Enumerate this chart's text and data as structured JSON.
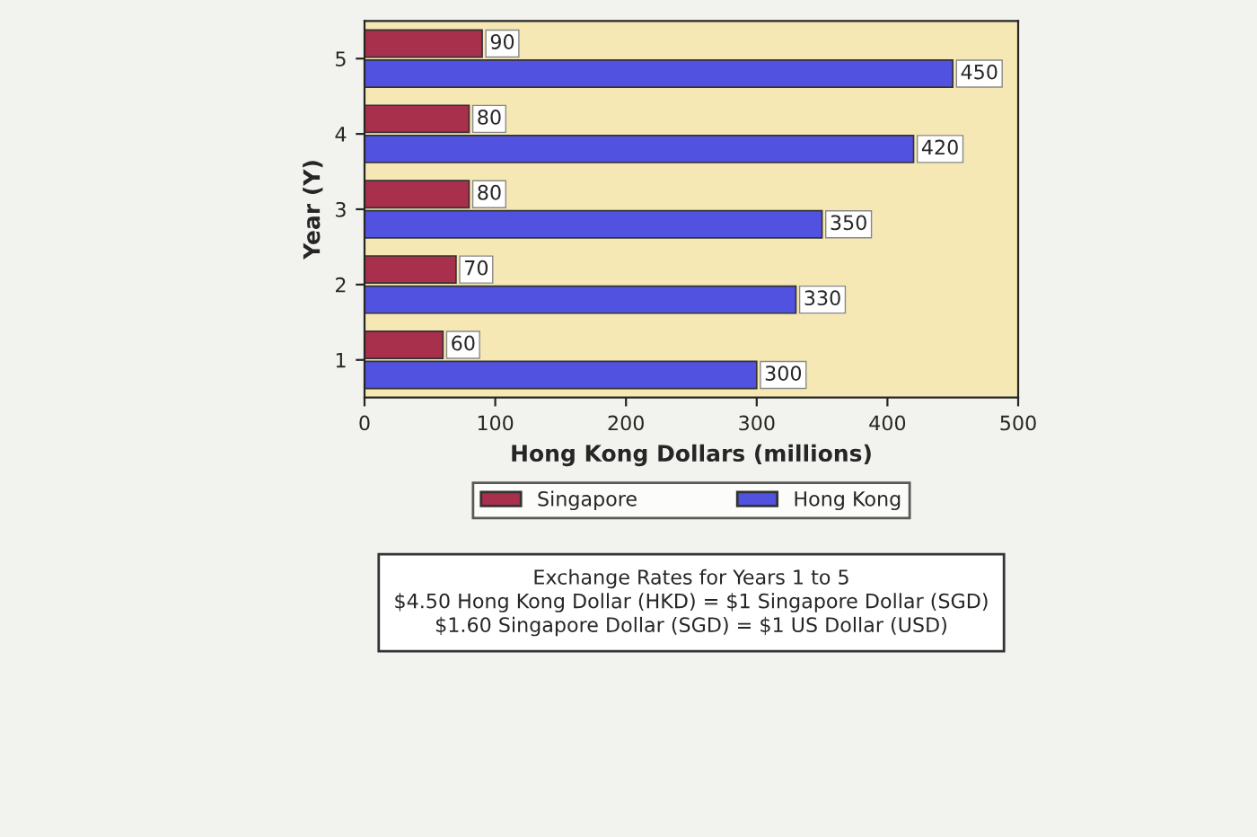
{
  "chart_data": {
    "type": "bar",
    "orientation": "horizontal",
    "categories": [
      "5",
      "4",
      "3",
      "2",
      "1"
    ],
    "series": [
      {
        "name": "Singapore",
        "color": "#a8304c",
        "values": [
          90,
          80,
          80,
          70,
          60
        ]
      },
      {
        "name": "Hong Kong",
        "color": "#5252e0",
        "values": [
          450,
          420,
          350,
          330,
          300
        ]
      }
    ],
    "xlim": [
      0,
      500
    ],
    "xticks": [
      0,
      100,
      200,
      300,
      400,
      500
    ],
    "xlabel": "Hong Kong Dollars (millions)",
    "ylabel": "Year (Y)",
    "data_labels": true,
    "legend": "bottom",
    "grid": false,
    "annotations": [
      "Exchange Rates for Years 1 to 5\n$4.50 Hong Kong Dollar (HKD) = $1 Singapore Dollar (SGD)\n$1.60 Singapore Dollar (SGD) = $1 US Dollar (USD)"
    ]
  }
}
